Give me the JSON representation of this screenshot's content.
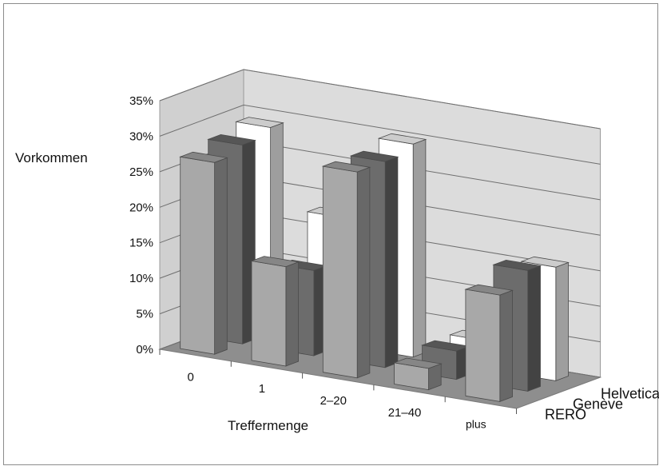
{
  "chart_data": {
    "type": "bar",
    "subtype": "3d-clustered-columns",
    "xlabel": "Treffermenge",
    "ylabel": "Vorkommen",
    "categories": [
      "0",
      "1",
      "2–20",
      "21–40",
      "plus"
    ],
    "ylim": [
      0,
      0.35
    ],
    "yticks": [
      {
        "value": 0.0,
        "label": "0%"
      },
      {
        "value": 0.05,
        "label": "5%"
      },
      {
        "value": 0.1,
        "label": "10%"
      },
      {
        "value": 0.15,
        "label": "15%"
      },
      {
        "value": 0.2,
        "label": "20%"
      },
      {
        "value": 0.25,
        "label": "25%"
      },
      {
        "value": 0.3,
        "label": "30%"
      },
      {
        "value": 0.35,
        "label": "35%"
      }
    ],
    "grid": true,
    "series": [
      {
        "name": "RERO",
        "color": "#a8a8a8",
        "values": [
          0.27,
          0.14,
          0.29,
          0.03,
          0.15
        ]
      },
      {
        "name": "Genève",
        "color": "#6c6c6c",
        "values": [
          0.28,
          0.12,
          0.29,
          0.04,
          0.17
        ]
      },
      {
        "name": "Helveticat",
        "color": "#ffffff",
        "values": [
          0.29,
          0.18,
          0.3,
          0.04,
          0.16
        ]
      }
    ],
    "series_labels_display": [
      "RERO",
      "Genève",
      "Helveticat"
    ]
  }
}
